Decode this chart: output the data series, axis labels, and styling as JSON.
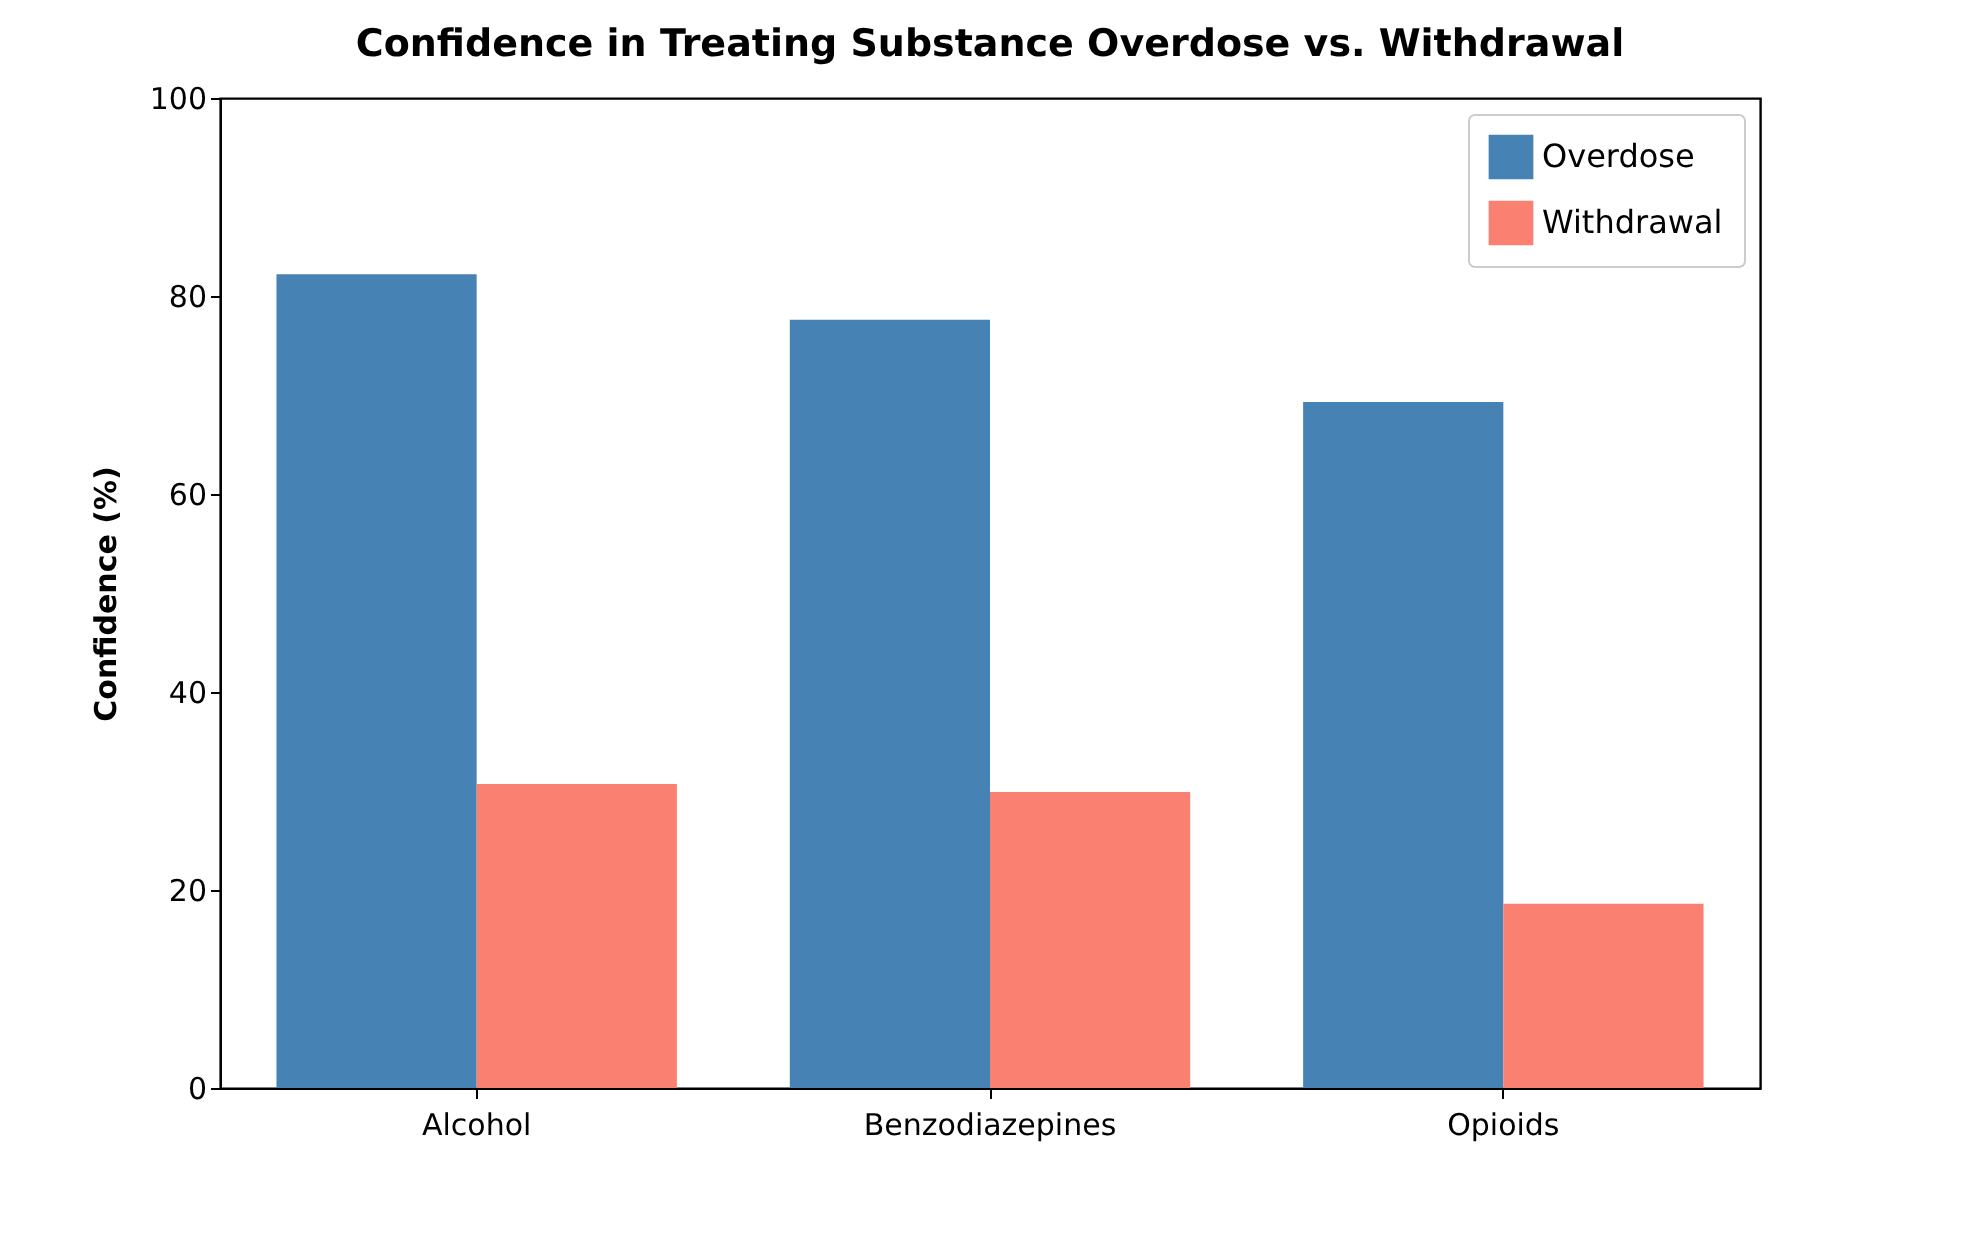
{
  "chart_data": {
    "type": "bar",
    "title": "Confidence in Treating Substance Overdose vs. Withdrawal",
    "ylabel": "Confidence (%)",
    "categories": [
      "Alcohol",
      "Benzodiazepines",
      "Opioids"
    ],
    "series": [
      {
        "name": "Overdose",
        "color": "#4682b4",
        "values": [
          82.2,
          77.6,
          69.3
        ]
      },
      {
        "name": "Withdrawal",
        "color": "#fa8072",
        "values": [
          30.7,
          29.9,
          18.6
        ]
      }
    ],
    "ylim": [
      0,
      100
    ],
    "yticks": [
      0,
      20,
      40,
      60,
      80,
      100
    ],
    "grid": false,
    "legend": "top right"
  }
}
